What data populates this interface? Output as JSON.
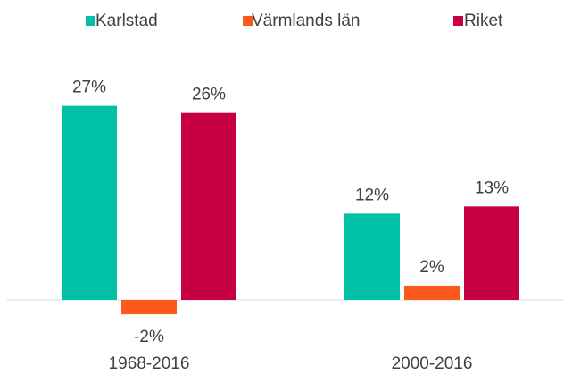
{
  "chart_data": {
    "type": "bar",
    "categories": [
      "1968-2016",
      "2000-2016"
    ],
    "series": [
      {
        "name": "Karlstad",
        "color": "#00c0a6",
        "values": [
          27,
          12
        ],
        "value_labels": [
          "27%",
          "12%"
        ]
      },
      {
        "name": "Värmlands län",
        "color": "#fc5a1c",
        "values": [
          -2,
          2
        ],
        "value_labels": [
          "-2%",
          "2%"
        ]
      },
      {
        "name": "Riket",
        "color": "#c70044",
        "values": [
          26,
          13
        ],
        "value_labels": [
          "26%",
          "13%"
        ]
      }
    ],
    "legend": "top"
  }
}
